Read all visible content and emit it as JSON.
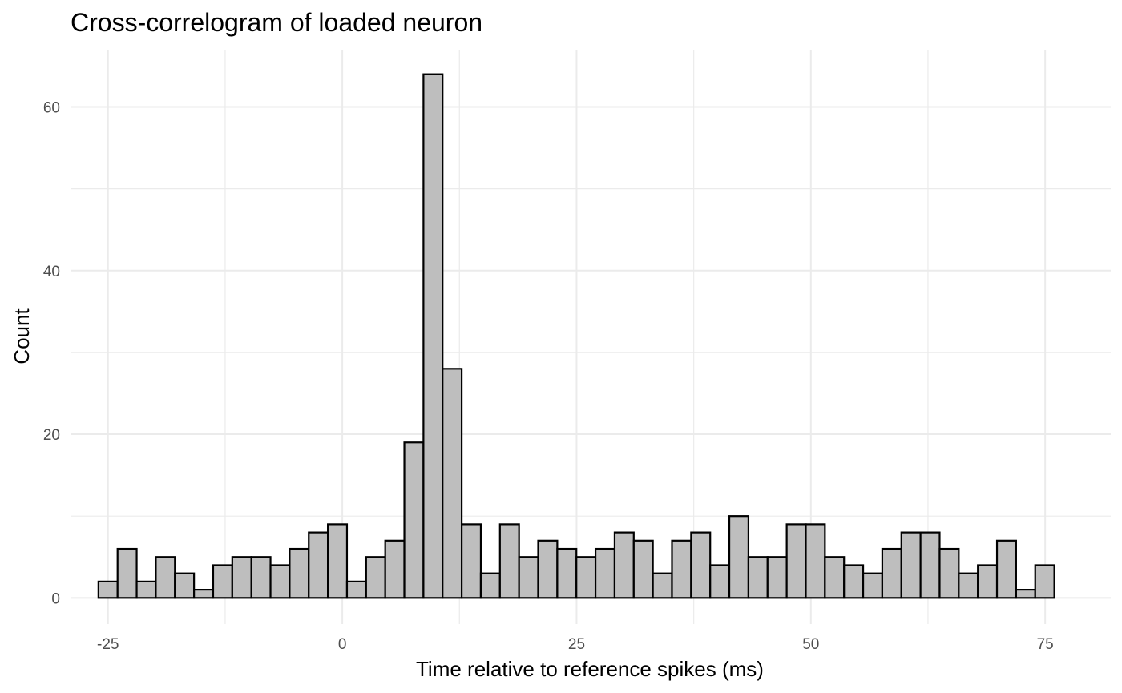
{
  "chart_data": {
    "type": "bar",
    "title": "Cross-correlogram of loaded neuron",
    "xlabel": "Time relative to reference spikes (ms)",
    "ylabel": "Count",
    "xlim": [
      -29,
      82
    ],
    "ylim": [
      -3.2,
      67
    ],
    "x_ticks": [
      -25,
      0,
      25,
      50,
      75
    ],
    "x_tick_labels": [
      "-25",
      "0",
      "25",
      "50",
      "75"
    ],
    "y_ticks": [
      0,
      20,
      40,
      60
    ],
    "y_tick_labels": [
      "0",
      "20",
      "40",
      "60"
    ],
    "x_minor_ticks": [
      -12.5,
      12.5,
      37.5,
      62.5
    ],
    "y_minor_ticks": [
      10,
      30,
      50
    ],
    "bin_width": 2.04,
    "bin_centers": [
      -25,
      -22.96,
      -20.92,
      -18.88,
      -16.84,
      -14.8,
      -12.76,
      -10.72,
      -8.68,
      -6.64,
      -4.6,
      -2.56,
      -0.52,
      1.52,
      3.56,
      5.6,
      7.64,
      9.68,
      11.72,
      13.76,
      15.8,
      17.84,
      19.88,
      21.92,
      23.96,
      26.0,
      28.04,
      30.08,
      32.12,
      34.16,
      36.2,
      38.24,
      40.28,
      42.32,
      44.36,
      46.4,
      48.44,
      50.48,
      52.52,
      54.56,
      56.6,
      58.64,
      60.68,
      62.72,
      64.76,
      66.8,
      68.84,
      70.88,
      72.92,
      74.96
    ],
    "counts": [
      2,
      6,
      2,
      5,
      3,
      1,
      4,
      5,
      5,
      4,
      6,
      8,
      9,
      2,
      5,
      7,
      19,
      64,
      28,
      9,
      3,
      9,
      5,
      7,
      6,
      5,
      6,
      8,
      7,
      3,
      7,
      8,
      4,
      10,
      5,
      5,
      9,
      9,
      5,
      4,
      3,
      6,
      8,
      8,
      6,
      3,
      4,
      7,
      1,
      4
    ],
    "grid": true,
    "legend": "none"
  }
}
